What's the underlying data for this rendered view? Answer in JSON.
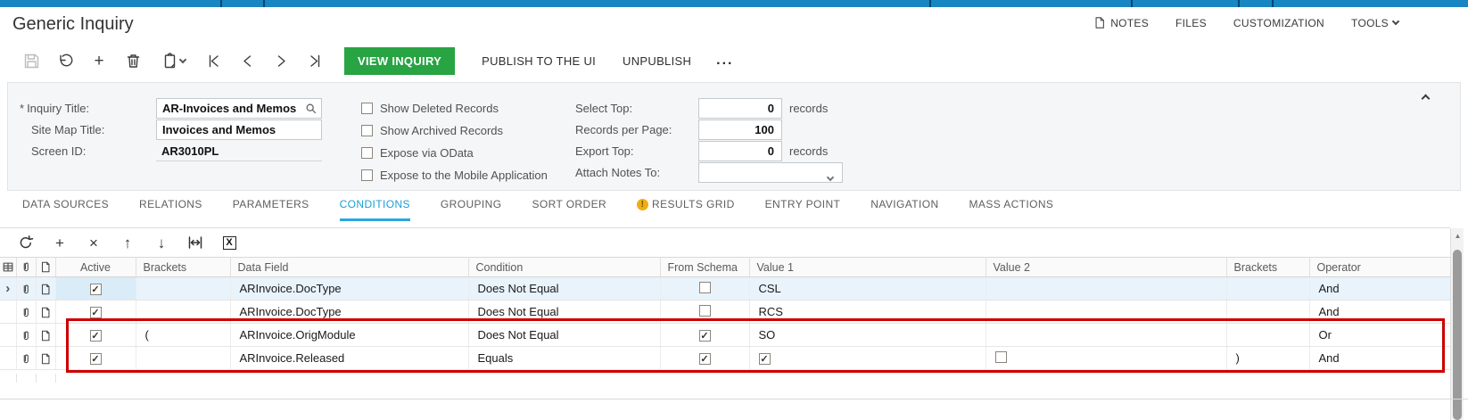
{
  "app": {
    "title": "Generic Inquiry"
  },
  "header_menu": {
    "notes": "NOTES",
    "files": "FILES",
    "customization": "CUSTOMIZATION",
    "tools": "TOOLS"
  },
  "toolbar": {
    "view_inquiry": "VIEW INQUIRY",
    "publish_to_ui": "PUBLISH TO THE UI",
    "unpublish": "UNPUBLISH",
    "more": "..."
  },
  "form": {
    "inquiry_title": {
      "required_marker": "*",
      "label": "Inquiry Title:",
      "value": "AR-Invoices and Memos"
    },
    "site_map_title": {
      "label": "Site Map Title:",
      "value": "Invoices and Memos"
    },
    "screen_id": {
      "label": "Screen ID:",
      "value": "AR3010PL"
    },
    "checkboxes": [
      {
        "label": "Show Deleted Records",
        "checked": false
      },
      {
        "label": "Show Archived Records",
        "checked": false
      },
      {
        "label": "Expose via OData",
        "checked": false
      },
      {
        "label": "Expose to the Mobile Application",
        "checked": false
      }
    ],
    "select_top": {
      "label": "Select Top:",
      "value": "0",
      "suffix": "records"
    },
    "records_per_page": {
      "label": "Records per Page:",
      "value": "100"
    },
    "export_top": {
      "label": "Export Top:",
      "value": "0",
      "suffix": "records"
    },
    "attach_notes_to": {
      "label": "Attach Notes To:",
      "value": ""
    }
  },
  "tabs": [
    {
      "label": "DATA SOURCES"
    },
    {
      "label": "RELATIONS"
    },
    {
      "label": "PARAMETERS"
    },
    {
      "label": "CONDITIONS",
      "active": true
    },
    {
      "label": "GROUPING"
    },
    {
      "label": "SORT ORDER"
    },
    {
      "label": "RESULTS GRID",
      "warning": true
    },
    {
      "label": "ENTRY POINT"
    },
    {
      "label": "NAVIGATION"
    },
    {
      "label": "MASS ACTIONS"
    }
  ],
  "grid": {
    "columns": [
      "Active",
      "Brackets",
      "Data Field",
      "Condition",
      "From Schema",
      "Value 1",
      "Value 2",
      "Brackets",
      "Operator"
    ],
    "rows": [
      {
        "selected": true,
        "active": true,
        "brackets": "",
        "data_field": "ARInvoice.DocType",
        "condition": "Does Not Equal",
        "from_schema": false,
        "value1": {
          "type": "text",
          "text": "CSL"
        },
        "value2": {
          "type": "empty"
        },
        "brackets2": "",
        "operator": "And"
      },
      {
        "active": true,
        "brackets": "",
        "data_field": "ARInvoice.DocType",
        "condition": "Does Not Equal",
        "from_schema": false,
        "value1": {
          "type": "text",
          "text": "RCS"
        },
        "value2": {
          "type": "empty"
        },
        "brackets2": "",
        "operator": "And"
      },
      {
        "active": true,
        "brackets": "(",
        "data_field": "ARInvoice.OrigModule",
        "condition": "Does Not Equal",
        "from_schema": true,
        "value1": {
          "type": "text",
          "text": "SO"
        },
        "value2": {
          "type": "empty"
        },
        "brackets2": "",
        "operator": "Or",
        "highlighted": true
      },
      {
        "active": true,
        "brackets": "",
        "data_field": "ARInvoice.Released",
        "condition": "Equals",
        "from_schema": true,
        "value1": {
          "type": "checkbox",
          "checked": true
        },
        "value2": {
          "type": "checkbox",
          "checked": false
        },
        "brackets2": ")",
        "operator": "And",
        "highlighted": true
      }
    ]
  },
  "colors": {
    "topbar_blue": "#1786c3",
    "active_tab_blue": "#1b9ed8",
    "button_green": "#28a443",
    "warning_yellow": "#f0ad12",
    "annotation_red": "#cc0000",
    "selected_row_blue": "#e8f3fb"
  }
}
